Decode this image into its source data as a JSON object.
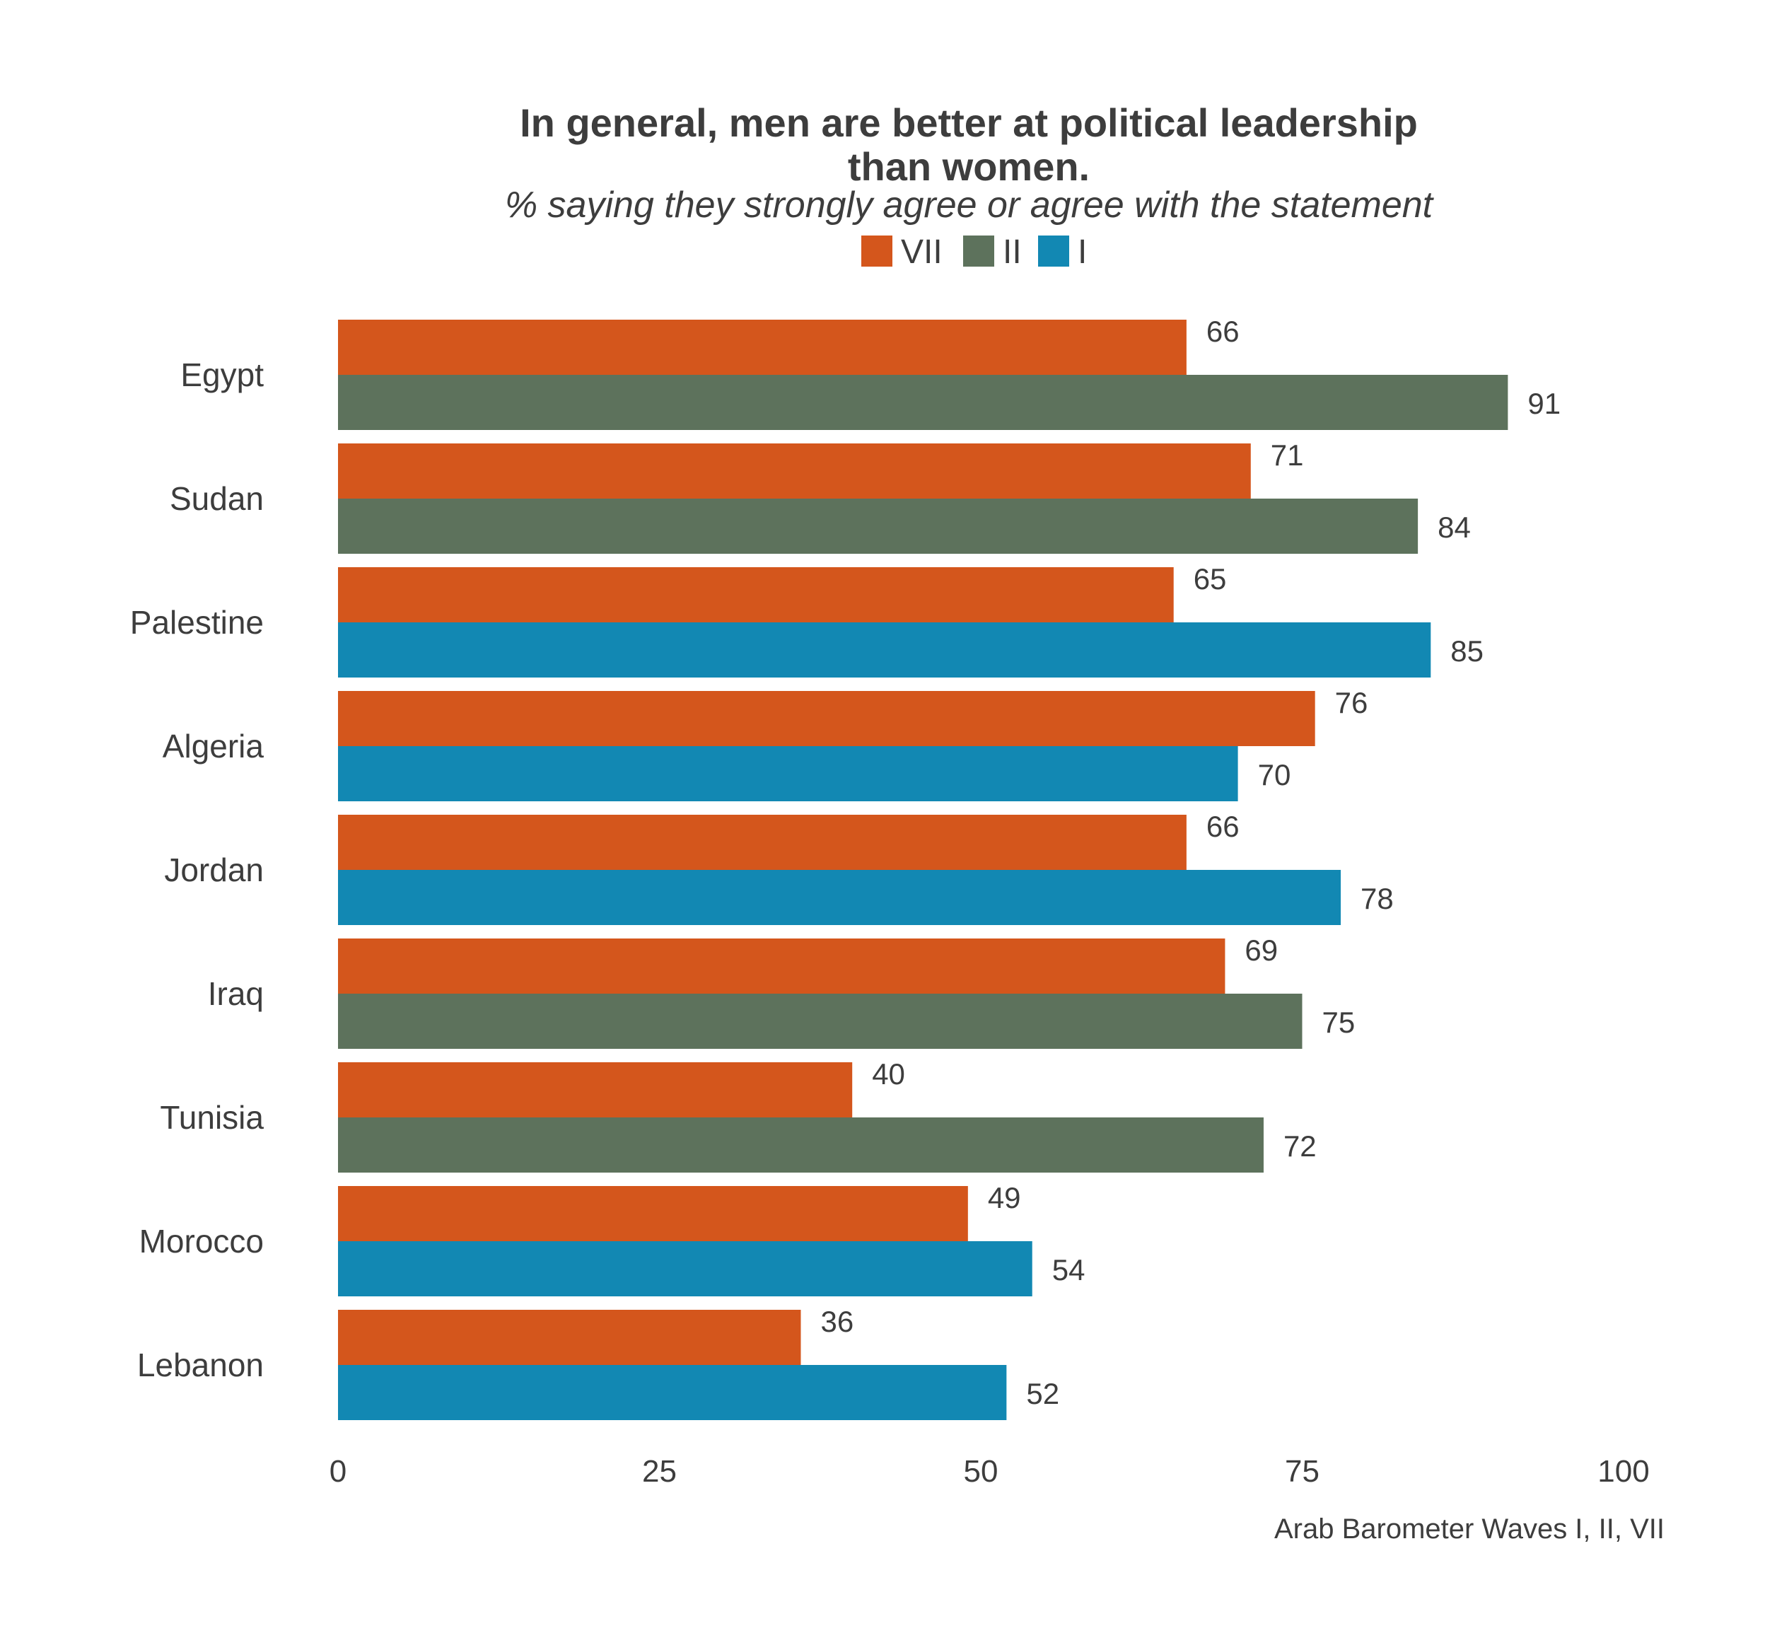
{
  "chart_data": {
    "type": "bar",
    "orientation": "horizontal",
    "title": [
      "In general, men are better at political leadership",
      "than women."
    ],
    "subtitle": "% saying they strongly agree or agree with the statement",
    "caption": "Arab Barometer Waves I, II, VII",
    "legend": [
      {
        "name": "VII",
        "color": "#d4561c"
      },
      {
        "name": "II",
        "color": "#5d725c"
      },
      {
        "name": "I",
        "color": "#1288b3"
      }
    ],
    "xlim": [
      0,
      100
    ],
    "xticks": [
      0,
      25,
      50,
      75,
      100
    ],
    "grid": false,
    "rows": [
      {
        "country": "Egypt",
        "bars": [
          {
            "wave": "VII",
            "value": 66
          },
          {
            "wave": "II",
            "value": 91
          }
        ]
      },
      {
        "country": "Sudan",
        "bars": [
          {
            "wave": "VII",
            "value": 71
          },
          {
            "wave": "II",
            "value": 84
          }
        ]
      },
      {
        "country": "Palestine",
        "bars": [
          {
            "wave": "VII",
            "value": 65
          },
          {
            "wave": "I",
            "value": 85
          }
        ]
      },
      {
        "country": "Algeria",
        "bars": [
          {
            "wave": "VII",
            "value": 76
          },
          {
            "wave": "I",
            "value": 70
          }
        ]
      },
      {
        "country": "Jordan",
        "bars": [
          {
            "wave": "VII",
            "value": 66
          },
          {
            "wave": "I",
            "value": 78
          }
        ]
      },
      {
        "country": "Iraq",
        "bars": [
          {
            "wave": "VII",
            "value": 69
          },
          {
            "wave": "II",
            "value": 75
          }
        ]
      },
      {
        "country": "Tunisia",
        "bars": [
          {
            "wave": "VII",
            "value": 40
          },
          {
            "wave": "II",
            "value": 72
          }
        ]
      },
      {
        "country": "Morocco",
        "bars": [
          {
            "wave": "VII",
            "value": 49
          },
          {
            "wave": "I",
            "value": 54
          }
        ]
      },
      {
        "country": "Lebanon",
        "bars": [
          {
            "wave": "VII",
            "value": 36
          },
          {
            "wave": "I",
            "value": 52
          }
        ]
      }
    ]
  }
}
